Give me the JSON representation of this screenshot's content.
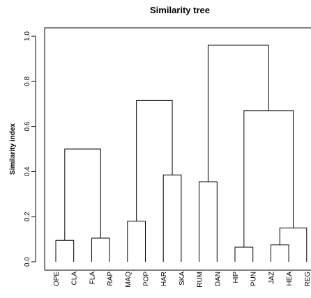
{
  "chart_data": {
    "type": "dendrogram",
    "title": "Similarity tree",
    "ylabel": "Similarity index",
    "xlabel": "",
    "ylim": [
      0,
      1.0
    ],
    "yticks": [
      "0.0",
      "0.2",
      "0.4",
      "0.6",
      "0.8",
      "1.0"
    ],
    "grid": false,
    "leaves": [
      "OPE",
      "CLA",
      "FLA",
      "RAP",
      "MAQ",
      "POP",
      "HAR",
      "SKA",
      "RUM",
      "DAN",
      "HIP",
      "PUN",
      "JAZ",
      "HEA",
      "REG"
    ],
    "merges": [
      {
        "left": "OPE",
        "right": "CLA",
        "height": 0.095
      },
      {
        "left": "FLA",
        "right": "RAP",
        "height": 0.105
      },
      {
        "left": "OPE-CLA",
        "right": "FLA-RAP",
        "height": 0.5
      },
      {
        "left": "MAQ",
        "right": "POP",
        "height": 0.18
      },
      {
        "left": "HAR",
        "right": "SKA",
        "height": 0.385
      },
      {
        "left": "MAQ-POP",
        "right": "HAR-SKA",
        "height": 0.715
      },
      {
        "left": "RUM",
        "right": "DAN",
        "height": 0.355
      },
      {
        "left": "HIP",
        "right": "PUN",
        "height": 0.065
      },
      {
        "left": "JAZ",
        "right": "HEA",
        "height": 0.075
      },
      {
        "left": "JAZ-HEA",
        "right": "REG",
        "height": 0.15
      },
      {
        "left": "HIP-PUN",
        "right": "JAZ-HEA-REG",
        "height": 0.67
      },
      {
        "left": "RUM-DAN",
        "right": "HIP-PUN-JAZ-HEA-REG",
        "height": 0.96
      }
    ]
  }
}
